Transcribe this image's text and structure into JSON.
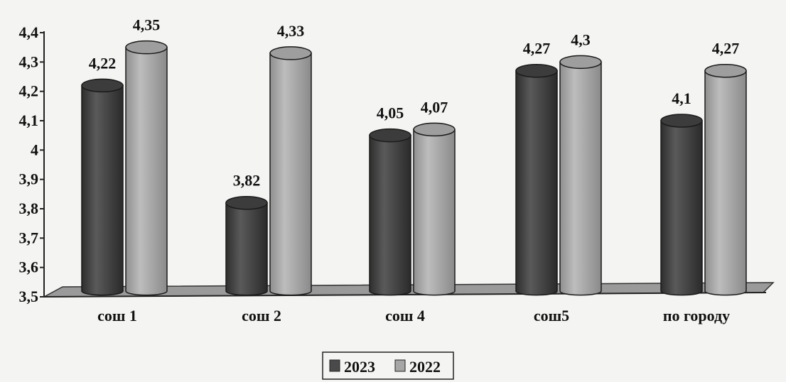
{
  "chart_data": {
    "type": "bar",
    "style": "3d-cylinder",
    "categories": [
      "сош 1",
      "сош 2",
      "сош 4",
      "сош5",
      "по городу"
    ],
    "series": [
      {
        "name": "2023",
        "values": [
          4.22,
          3.82,
          4.05,
          4.27,
          4.1
        ],
        "color": "#4a4a4a"
      },
      {
        "name": "2022",
        "values": [
          4.35,
          4.33,
          4.07,
          4.3,
          4.27
        ],
        "color": "#a6a6a6"
      }
    ],
    "data_labels": [
      [
        "4,22",
        "3,82",
        "4,05",
        "4,27",
        "4,1"
      ],
      [
        "4,35",
        "4,33",
        "4,07",
        "4,3",
        "4,27"
      ]
    ],
    "yticks": [
      "3,5",
      "3,6",
      "3,7",
      "3,8",
      "3,9",
      "4",
      "4,1",
      "4,2",
      "4,3",
      "4,4"
    ],
    "ylim": [
      3.5,
      4.4
    ],
    "grid": false,
    "legend": {
      "position": "bottom-center",
      "entries": [
        "2023",
        "2022"
      ]
    }
  }
}
